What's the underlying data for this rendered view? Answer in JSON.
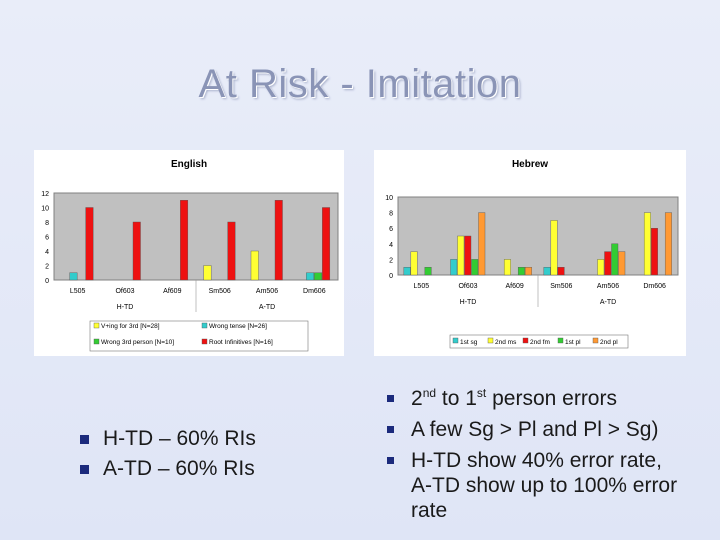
{
  "slide": {
    "title": "At Risk - Imitation"
  },
  "chart_data": [
    {
      "type": "bar",
      "title": "English",
      "categories": [
        "L505",
        "Of603",
        "Af609",
        "Sm506",
        "Am506",
        "Dm606"
      ],
      "group_labels": [
        "H-TD",
        "A-TD"
      ],
      "ylim": [
        0,
        12
      ],
      "yticks": [
        0,
        2,
        4,
        6,
        8,
        10,
        12
      ],
      "series": [
        {
          "name": "V+ing for 3rd [N=28]",
          "color": "#ffff33",
          "values": [
            0,
            0,
            0,
            2,
            4,
            0
          ]
        },
        {
          "name": "Wrong tense [N=26]",
          "color": "#33cccc",
          "values": [
            1,
            0,
            0,
            0,
            0,
            1
          ]
        },
        {
          "name": "Wrong 3rd person [N=10]",
          "color": "#33cc33",
          "values": [
            0,
            0,
            0,
            0,
            0,
            1
          ]
        },
        {
          "name": "Root Infinitives [N=16]",
          "color": "#ee1111",
          "values": [
            10,
            8,
            11,
            8,
            11,
            10
          ]
        }
      ]
    },
    {
      "type": "bar",
      "title": "Hebrew",
      "categories": [
        "L505",
        "Of603",
        "Af609",
        "Sm506",
        "Am506",
        "Dm606"
      ],
      "group_labels": [
        "H-TD",
        "A-TD"
      ],
      "ylim": [
        0,
        10
      ],
      "yticks": [
        0,
        2,
        4,
        6,
        8,
        10
      ],
      "series": [
        {
          "name": "1st sg",
          "color": "#33cccc",
          "values": [
            1,
            2,
            0,
            1,
            0,
            0
          ]
        },
        {
          "name": "2nd ms",
          "color": "#ffff33",
          "values": [
            3,
            5,
            2,
            7,
            2,
            8
          ]
        },
        {
          "name": "2nd fm",
          "color": "#ee1111",
          "values": [
            0,
            5,
            0,
            1,
            3,
            6
          ]
        },
        {
          "name": "1st pl",
          "color": "#33cc33",
          "values": [
            1,
            2,
            1,
            0,
            4,
            0
          ]
        },
        {
          "name": "2nd pl",
          "color": "#ff9933",
          "values": [
            0,
            8,
            1,
            0,
            3,
            8
          ]
        }
      ]
    }
  ],
  "left_bullets": [
    "H-TD – 60% RIs",
    "A-TD – 60% RIs"
  ],
  "right_bullets": {
    "b1": {
      "pre": "2",
      "sup1": "nd",
      "mid": " to 1",
      "sup2": "st",
      "post": " person errors"
    },
    "b2": "A few Sg > Pl and Pl > Sg)",
    "b3": "H-TD show 40% error rate, A-TD show up to 100% error rate"
  }
}
